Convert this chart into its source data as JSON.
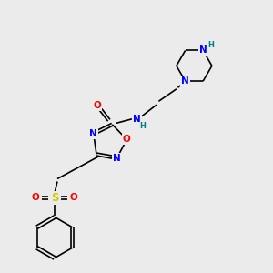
{
  "background_color": "#ebebeb",
  "bond_color": "#000000",
  "atom_colors": {
    "O": "#ff0000",
    "N": "#0000ff",
    "S": "#cccc00",
    "H": "#008080",
    "C": "#000000"
  },
  "figure_size": [
    3.0,
    3.0
  ],
  "dpi": 100
}
